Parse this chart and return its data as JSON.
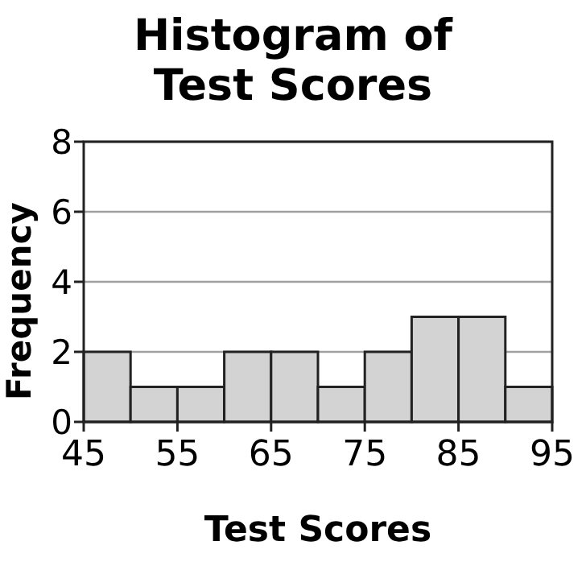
{
  "chart_data": {
    "type": "histogram",
    "title": "Histogram of Test Scores",
    "xlabel": "Test Scores",
    "ylabel": "Frequency",
    "bins": [
      45,
      50,
      55,
      60,
      65,
      70,
      75,
      80,
      85,
      90,
      95
    ],
    "values": [
      2,
      1,
      1,
      2,
      2,
      1,
      2,
      3,
      3,
      1
    ],
    "color": "#d3d3d3",
    "xlim": [
      45,
      95
    ],
    "xticks": [
      45,
      55,
      65,
      75,
      85,
      95
    ],
    "ylim": [
      0,
      8
    ],
    "yticks": [
      0,
      2,
      4,
      6,
      8
    ],
    "grid": "y"
  }
}
